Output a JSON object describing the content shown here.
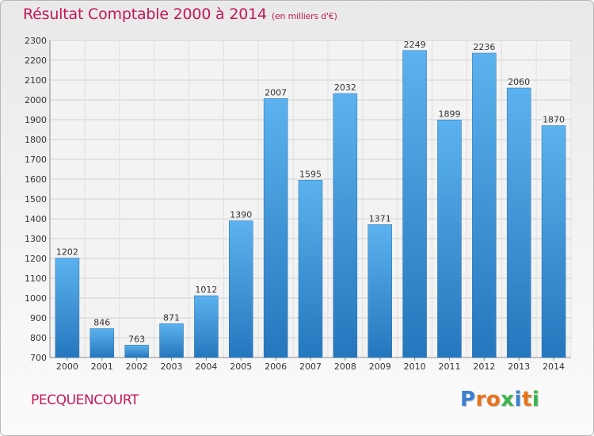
{
  "chart_data": {
    "type": "bar",
    "title": "Résultat Comptable 2000 à 2014",
    "subtitle": "(en milliers d'€)",
    "categories": [
      "2000",
      "2001",
      "2002",
      "2003",
      "2004",
      "2005",
      "2006",
      "2007",
      "2008",
      "2009",
      "2010",
      "2011",
      "2012",
      "2013",
      "2014"
    ],
    "values": [
      1202,
      846,
      763,
      871,
      1012,
      1390,
      2007,
      1595,
      2032,
      1371,
      2249,
      1899,
      2236,
      2060,
      1870
    ],
    "ylim": [
      700,
      2300
    ],
    "yticks": [
      700,
      800,
      900,
      1000,
      1100,
      1200,
      1300,
      1400,
      1500,
      1600,
      1700,
      1800,
      1900,
      2000,
      2100,
      2200,
      2300
    ],
    "grid": true,
    "xlabel": "",
    "ylabel": "",
    "bar_color": "#3f97dc"
  },
  "footer": {
    "commune": "PECQUENCOURT",
    "logo": {
      "letters": [
        "P",
        "r",
        "o",
        "x",
        "i",
        "t",
        "i"
      ],
      "colors": [
        "#3a7fd0",
        "#e8731a",
        "#e8731a",
        "#3ab54a",
        "#3a7fd0",
        "#e8731a",
        "#3ab54a"
      ]
    }
  }
}
